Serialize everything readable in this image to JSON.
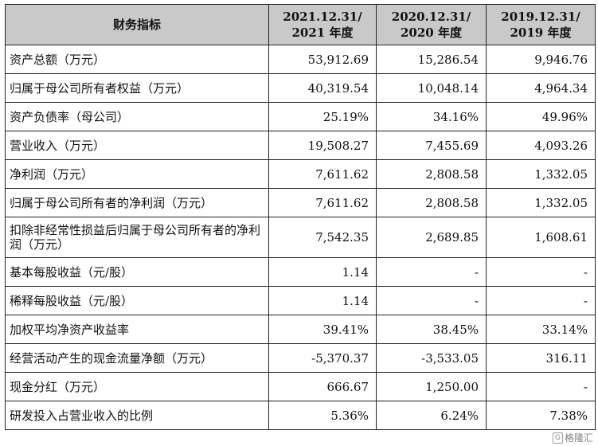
{
  "table": {
    "header": {
      "label": "财务指标",
      "cols": [
        {
          "line1": "2021.12.31/",
          "line2": "2021 年度"
        },
        {
          "line1": "2020.12.31/",
          "line2": "2020 年度"
        },
        {
          "line1": "2019.12.31/",
          "line2": "2019 年度"
        }
      ]
    },
    "rows": [
      {
        "label": "资产总额（万元）",
        "values": [
          "53,912.69",
          "15,286.54",
          "9,946.76"
        ]
      },
      {
        "label": "归属于母公司所有者权益（万元）",
        "values": [
          "40,319.54",
          "10,048.14",
          "4,964.34"
        ]
      },
      {
        "label": "资产负债率（母公司）",
        "values": [
          "25.19%",
          "34.16%",
          "49.96%"
        ]
      },
      {
        "label": "营业收入（万元）",
        "values": [
          "19,508.27",
          "7,455.69",
          "4,093.26"
        ]
      },
      {
        "label": "净利润（万元）",
        "values": [
          "7,611.62",
          "2,808.58",
          "1,332.05"
        ]
      },
      {
        "label": "归属于母公司所有者的净利润（万元）",
        "values": [
          "7,611.62",
          "2,808.58",
          "1,332.05"
        ]
      },
      {
        "label": "扣除非经常性损益后归属于母公司所有者的净利润（万元）",
        "values": [
          "7,542.35",
          "2,689.85",
          "1,608.61"
        ]
      },
      {
        "label": "基本每股收益（元/股）",
        "values": [
          "1.14",
          "-",
          "-"
        ]
      },
      {
        "label": "稀释每股收益（元/股）",
        "values": [
          "1.14",
          "-",
          "-"
        ]
      },
      {
        "label": "加权平均净资产收益率",
        "values": [
          "39.41%",
          "38.45%",
          "33.14%"
        ]
      },
      {
        "label": "经营活动产生的现金流量净额（万元）",
        "values": [
          "-5,370.37",
          "-3,533.05",
          "316.11"
        ]
      },
      {
        "label": "现金分红（万元）",
        "values": [
          "666.67",
          "1,250.00",
          "-"
        ]
      },
      {
        "label": "研发投入占营业收入的比例",
        "values": [
          "5.36%",
          "6.24%",
          "7.38%"
        ]
      }
    ]
  },
  "watermark": {
    "badge": "G",
    "text": "格隆汇"
  }
}
